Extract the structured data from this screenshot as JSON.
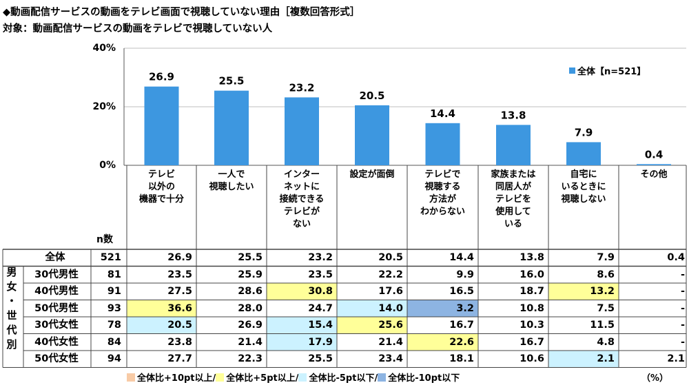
{
  "title": "◆動画配信サービスの動画をテレビ画面で視聴していない理由［複数回答形式］",
  "subtitle": "対象：動画配信サービスの動画をテレビで視聴していない人",
  "chart_data": {
    "type": "bar",
    "y_ticks": [
      "40%",
      "20%",
      "0%"
    ],
    "ylim": [
      0,
      40
    ],
    "legend": "全体【n=521】",
    "categories": [
      [
        "テレビ",
        "以外の",
        "機器で十分"
      ],
      [
        "一人で",
        "視聴したい"
      ],
      [
        "インター",
        "ネットに",
        "接続できる",
        "テレビが",
        "ない"
      ],
      [
        "設定が面倒"
      ],
      [
        "テレビで",
        "視聴する",
        "方法が",
        "わからない"
      ],
      [
        "家族または",
        "同居人が",
        "テレビを",
        "使用して",
        "いる"
      ],
      [
        "自宅に",
        "いるときに",
        "視聴しない"
      ],
      [
        "その他"
      ]
    ],
    "values": [
      26.9,
      25.5,
      23.2,
      20.5,
      14.4,
      13.8,
      7.9,
      0.4
    ],
    "value_labels": [
      "26.9",
      "25.5",
      "23.2",
      "20.5",
      "14.4",
      "13.8",
      "7.9",
      "0.4"
    ],
    "color": "#3d97e0"
  },
  "table": {
    "n_header": "n数",
    "side_group": [
      "男",
      "女",
      "・",
      "世",
      "代",
      "別"
    ],
    "rows": [
      {
        "label": "全体",
        "n": "521",
        "cells": [
          "26.9",
          "25.5",
          "23.2",
          "20.5",
          "14.4",
          "13.8",
          "7.9",
          "0.4"
        ],
        "hl": [
          "",
          "",
          "",
          "",
          "",
          "",
          "",
          ""
        ]
      },
      {
        "label": "30代男性",
        "n": "81",
        "cells": [
          "23.5",
          "25.9",
          "23.5",
          "22.2",
          "9.9",
          "16.0",
          "8.6",
          "-"
        ],
        "hl": [
          "",
          "",
          "",
          "",
          "",
          "",
          "",
          ""
        ]
      },
      {
        "label": "40代男性",
        "n": "91",
        "cells": [
          "27.5",
          "28.6",
          "30.8",
          "17.6",
          "16.5",
          "18.7",
          "13.2",
          "-"
        ],
        "hl": [
          "",
          "",
          "y",
          "",
          "",
          "",
          "y",
          ""
        ]
      },
      {
        "label": "50代男性",
        "n": "93",
        "cells": [
          "36.6",
          "28.0",
          "24.7",
          "14.0",
          "3.2",
          "10.8",
          "7.5",
          "-"
        ],
        "hl": [
          "y",
          "",
          "",
          "c",
          "b",
          "",
          "",
          ""
        ]
      },
      {
        "label": "30代女性",
        "n": "78",
        "cells": [
          "20.5",
          "26.9",
          "15.4",
          "25.6",
          "16.7",
          "10.3",
          "11.5",
          "-"
        ],
        "hl": [
          "c",
          "",
          "c",
          "y",
          "",
          "",
          "",
          ""
        ]
      },
      {
        "label": "40代女性",
        "n": "84",
        "cells": [
          "23.8",
          "21.4",
          "17.9",
          "21.4",
          "22.6",
          "16.7",
          "4.8",
          "-"
        ],
        "hl": [
          "",
          "",
          "c",
          "",
          "y",
          "",
          "",
          ""
        ]
      },
      {
        "label": "50代女性",
        "n": "94",
        "cells": [
          "27.7",
          "22.3",
          "25.5",
          "23.4",
          "18.1",
          "10.6",
          "2.1",
          "2.1"
        ],
        "hl": [
          "",
          "",
          "",
          "",
          "",
          "",
          "c",
          ""
        ]
      }
    ]
  },
  "footer_legend": [
    {
      "label": "全体比+10pt以上/",
      "color": "#f8cba6"
    },
    {
      "label": "全体比+5pt以上/",
      "color": "#ffff99"
    },
    {
      "label": "全体比-5pt以下/",
      "color": "#ccf2ff"
    },
    {
      "label": "全体比-10pt以下",
      "color": "#8db4e2"
    }
  ],
  "unit": "（%）",
  "highlight_colors": {
    "y": "#ffff99",
    "c": "#ccf2ff",
    "b": "#8db4e2",
    "o": "#f8cba6"
  }
}
